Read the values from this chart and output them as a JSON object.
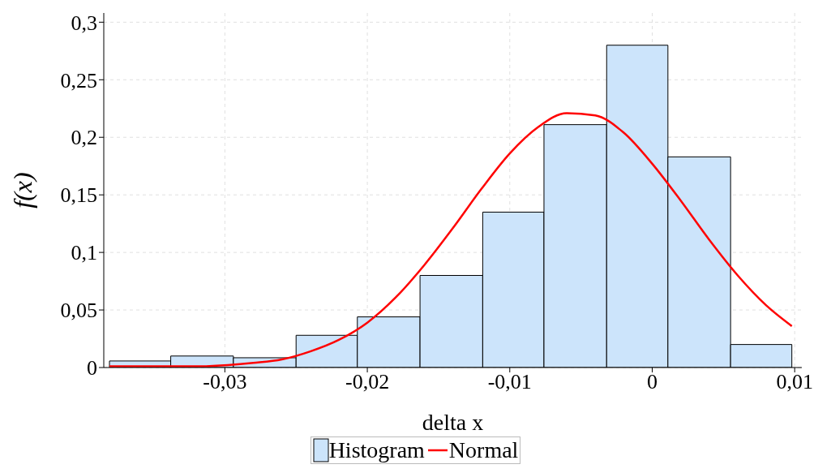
{
  "chart_data": {
    "type": "histogram",
    "xlabel": "delta x",
    "ylabel": "f(x)",
    "legend": "bottom",
    "grid": true,
    "bins": [
      -0.0381,
      -0.0338,
      -0.0294,
      -0.025,
      -0.0207,
      -0.0163,
      -0.0119,
      -0.0076,
      -0.0032,
      0.0011,
      0.0055,
      0.0098
    ],
    "xlim": [
      -0.0385,
      0.0105
    ],
    "xticks": [
      {
        "value": -0.03,
        "label": "-0,03"
      },
      {
        "value": -0.02,
        "label": "-0,02"
      },
      {
        "value": -0.01,
        "label": "-0,01"
      },
      0,
      {
        "value": 0.01,
        "label": "0,01"
      }
    ],
    "ylim": [
      0,
      0.308
    ],
    "yticks": [
      0,
      {
        "value": 0.05,
        "label": "0,05"
      },
      {
        "value": 0.1,
        "label": "0,1"
      },
      {
        "value": 0.15,
        "label": "0,15"
      },
      {
        "value": 0.2,
        "label": "0,2"
      },
      {
        "value": 0.25,
        "label": "0,25"
      },
      {
        "value": 0.3,
        "label": "0,3"
      }
    ],
    "series": [
      {
        "name": "Histogram",
        "color": "#cce4fb",
        "values": [
          0.0057,
          0.01,
          0.0085,
          0.028,
          0.044,
          0.08,
          0.135,
          0.211,
          0.28,
          0.183,
          0.02
        ]
      },
      {
        "name": "Normal",
        "type": "line",
        "color": "#ff0000",
        "x": [
          -0.0381,
          -0.036,
          -0.032,
          -0.028,
          -0.026,
          -0.024,
          -0.022,
          -0.02,
          -0.018,
          -0.016,
          -0.014,
          -0.012,
          -0.01,
          -0.008,
          -0.006,
          -0.004,
          -0.002,
          0,
          0.002,
          0.004,
          0.006,
          0.008,
          0.0098
        ],
        "values": [
          0.001,
          0.001,
          0.001,
          0.004,
          0.007,
          0.014,
          0.024,
          0.039,
          0.061,
          0.089,
          0.121,
          0.155,
          0.186,
          0.209,
          0.221,
          0.219,
          0.204,
          0.177,
          0.145,
          0.111,
          0.08,
          0.054,
          0.036
        ]
      }
    ]
  }
}
